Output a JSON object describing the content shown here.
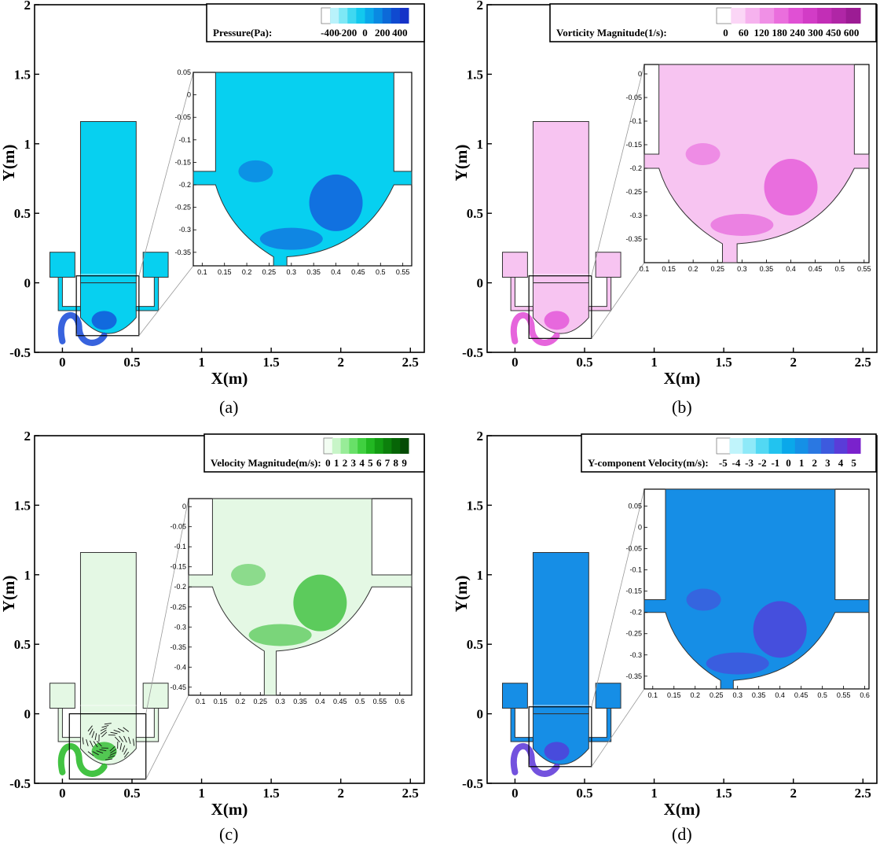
{
  "figure": {
    "panels": [
      {
        "caption": "(a)",
        "legend_title": "Pressure(Pa):",
        "legend_ticks": [
          "-400",
          "-200",
          "0",
          "200",
          "400"
        ],
        "colors": [
          "#ffffff",
          "#b9f2fb",
          "#7ee8f6",
          "#3fd8f1",
          "#12c8ee",
          "#0aa8ea",
          "#0a8ae2",
          "#0c6ad8",
          "#0f4ad0",
          "#1532c8"
        ],
        "body_color": "#07d0f0",
        "accent_color": "#1548d8"
      },
      {
        "caption": "(b)",
        "legend_title": "Vorticity Magnitude(1/s):",
        "legend_ticks": [
          "0",
          "60",
          "120",
          "180",
          "240",
          "300",
          "450",
          "600"
        ],
        "colors": [
          "#ffffff",
          "#fbd6f6",
          "#f6b2ee",
          "#f090e6",
          "#ea6edd",
          "#e050d4",
          "#d23cc6",
          "#c22eb6",
          "#b026a6",
          "#9c1c94"
        ],
        "body_color": "#f7c4f1",
        "accent_color": "#e24ad6"
      },
      {
        "caption": "(c)",
        "legend_title": "Velocity Magnitude(m/s):",
        "legend_ticks": [
          "0",
          "1",
          "2",
          "3",
          "4",
          "5",
          "6",
          "7",
          "8",
          "9"
        ],
        "colors": [
          "#f2fdf2",
          "#c8f5c8",
          "#98ec98",
          "#68e068",
          "#40d040",
          "#22b822",
          "#139c13",
          "#0c800c",
          "#076507",
          "#044b04"
        ],
        "body_color": "#e4f8e4",
        "accent_color": "#22b822"
      },
      {
        "caption": "(d)",
        "legend_title": "Y-component Velocity(m/s):",
        "legend_ticks": [
          "-5",
          "-4",
          "-3",
          "-2",
          "-1",
          "0",
          "1",
          "2",
          "3",
          "4",
          "5"
        ],
        "colors": [
          "#ffffff",
          "#c0f4fb",
          "#8ee9f8",
          "#52d8f3",
          "#22c3ef",
          "#0aa8ea",
          "#1590e6",
          "#2a78e2",
          "#3d5ade",
          "#5a3cd8",
          "#7a22cc"
        ],
        "body_color": "#168ee6",
        "accent_color": "#5a34d8"
      }
    ]
  },
  "chart_data": [
    {
      "type": "heatmap",
      "title": "",
      "xlabel": "X(m)",
      "ylabel": "Y(m)",
      "xlim": [
        -0.2,
        2.6
      ],
      "ylim": [
        -0.5,
        2
      ],
      "xticks": [
        "0",
        "0.5",
        "1",
        "1.5",
        "2",
        "2.5"
      ],
      "yticks": [
        "-0.5",
        "0",
        "0.5",
        "1",
        "1.5",
        "2"
      ],
      "legend": {
        "title": "Pressure(Pa):",
        "ticks": [
          "-400",
          "-200",
          "0",
          "200",
          "400"
        ],
        "placement": "top-right"
      },
      "zoom_box": {
        "x": [
          0.1,
          0.55
        ],
        "y": [
          -0.38,
          0.05
        ]
      },
      "inset": {
        "xlim": [
          0.08,
          0.57
        ],
        "ylim": [
          -0.38,
          0.05
        ],
        "xticks": [
          "0.1",
          "0.15",
          "0.2",
          "0.25",
          "0.3",
          "0.35",
          "0.4",
          "0.45",
          "0.5",
          "0.55"
        ],
        "yticks": [
          "0.05",
          "0",
          "-0.05",
          "-0.1",
          "-0.15",
          "-0.2",
          "-0.25",
          "-0.3",
          "-0.35"
        ]
      }
    },
    {
      "type": "heatmap",
      "title": "",
      "xlabel": "X(m)",
      "ylabel": "Y(m)",
      "xlim": [
        -0.2,
        2.6
      ],
      "ylim": [
        -0.5,
        2
      ],
      "xticks": [
        "0",
        "0.5",
        "1",
        "1.5",
        "2",
        "2.5"
      ],
      "yticks": [
        "-0.5",
        "0",
        "0.5",
        "1",
        "1.5",
        "2"
      ],
      "legend": {
        "title": "Vorticity Magnitude(1/s):",
        "ticks": [
          "0",
          "60",
          "120",
          "180",
          "240",
          "300",
          "450",
          "600"
        ],
        "placement": "top-right"
      },
      "zoom_box": {
        "x": [
          0.1,
          0.55
        ],
        "y": [
          -0.4,
          0.05
        ]
      },
      "inset": {
        "xlim": [
          0.1,
          0.56
        ],
        "ylim": [
          -0.4,
          0.02
        ],
        "xticks": [
          "0.1",
          "0.15",
          "0.2",
          "0.25",
          "0.3",
          "0.35",
          "0.4",
          "0.45",
          "0.5",
          "0.55"
        ],
        "yticks": [
          "0",
          "-0.05",
          "-0.1",
          "-0.15",
          "-0.2",
          "-0.25",
          "-0.3",
          "-0.35"
        ]
      }
    },
    {
      "type": "heatmap",
      "title": "",
      "xlabel": "X(m)",
      "ylabel": "Y(m)",
      "xlim": [
        -0.2,
        2.6
      ],
      "ylim": [
        -0.5,
        2
      ],
      "xticks": [
        "0",
        "0.5",
        "1",
        "1.5",
        "2",
        "2.5"
      ],
      "yticks": [
        "-0.5",
        "0",
        "0.5",
        "1",
        "1.5",
        "2"
      ],
      "legend": {
        "title": "Velocity Magnitude(m/s):",
        "ticks": [
          "0",
          "1",
          "2",
          "3",
          "4",
          "5",
          "6",
          "7",
          "8",
          "9"
        ],
        "placement": "top-right"
      },
      "zoom_box": {
        "x": [
          0.05,
          0.6
        ],
        "y": [
          -0.47,
          0.0
        ]
      },
      "inset": {
        "xlim": [
          0.07,
          0.63
        ],
        "ylim": [
          -0.47,
          0.02
        ],
        "xticks": [
          "0.1",
          "0.15",
          "0.2",
          "0.25",
          "0.3",
          "0.35",
          "0.4",
          "0.45",
          "0.5",
          "0.55",
          "0.6"
        ],
        "yticks": [
          "0",
          "-0.05",
          "-0.1",
          "-0.15",
          "-0.2",
          "-0.25",
          "-0.3",
          "-0.35",
          "-0.4",
          "-0.45"
        ]
      }
    },
    {
      "type": "heatmap",
      "title": "",
      "xlabel": "X(m)",
      "ylabel": "Y(m)",
      "xlim": [
        -0.2,
        2.6
      ],
      "ylim": [
        -0.5,
        2
      ],
      "xticks": [
        "0",
        "0.5",
        "1",
        "1.5",
        "2",
        "2.5"
      ],
      "yticks": [
        "-0.5",
        "0",
        "0.5",
        "1",
        "1.5",
        "2"
      ],
      "legend": {
        "title": "Y-component Velocity(m/s):",
        "ticks": [
          "-5",
          "-4",
          "-3",
          "-2",
          "-1",
          "0",
          "1",
          "2",
          "3",
          "4",
          "5"
        ],
        "placement": "top-right"
      },
      "zoom_box": {
        "x": [
          0.1,
          0.55
        ],
        "y": [
          -0.38,
          0.05
        ]
      },
      "inset": {
        "xlim": [
          0.08,
          0.61
        ],
        "ylim": [
          -0.38,
          0.09
        ],
        "xticks": [
          "0.1",
          "0.15",
          "0.2",
          "0.25",
          "0.3",
          "0.35",
          "0.4",
          "0.45",
          "0.5",
          "0.55",
          "0.6"
        ],
        "yticks": [
          "0.05",
          "0",
          "-0.05",
          "-0.1",
          "-0.15",
          "-0.2",
          "-0.25",
          "-0.3",
          "-0.35"
        ]
      }
    }
  ]
}
